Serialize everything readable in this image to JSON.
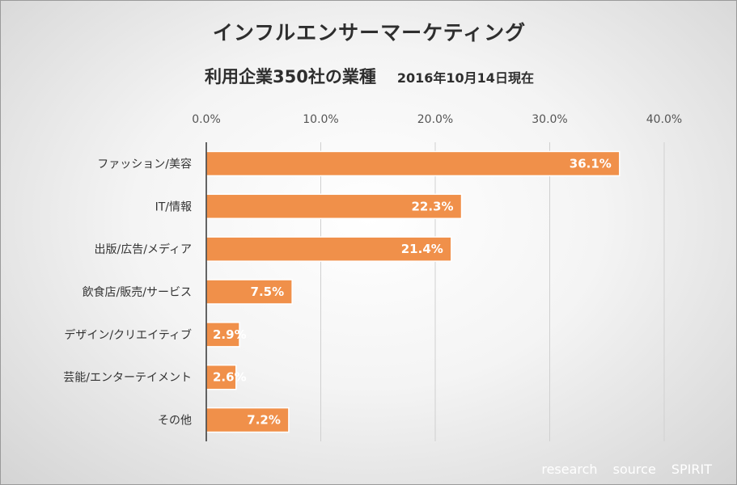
{
  "chart_data": {
    "type": "bar",
    "orientation": "horizontal",
    "title": "インフルエンサーマーケティング",
    "subtitle": "利用企業350社の業種",
    "date_note": "2016年10月14日現在",
    "categories": [
      "ファッション/美容",
      "IT/情報",
      "出版/広告/メディア",
      "飲食店/販売/サービス",
      "デザイン/クリエイティブ",
      "芸能/エンターテイメント",
      "その他"
    ],
    "values": [
      36.1,
      22.3,
      21.4,
      7.5,
      2.9,
      2.6,
      7.2
    ],
    "value_labels": [
      "36.1%",
      "22.3%",
      "21.4%",
      "7.5%",
      "2.9%",
      "2.6%",
      "7.2%"
    ],
    "xlim": [
      0,
      40
    ],
    "ticks": [
      0,
      10,
      20,
      30,
      40
    ],
    "tick_labels": [
      "0.0%",
      "10.0%",
      "20.0%",
      "30.0%",
      "40.0%"
    ],
    "xaxis_position": "top",
    "grid": true,
    "bar_color": "#f0904a",
    "bar_edge_color": "#ffffff"
  },
  "credit": "research source SPIRIT"
}
